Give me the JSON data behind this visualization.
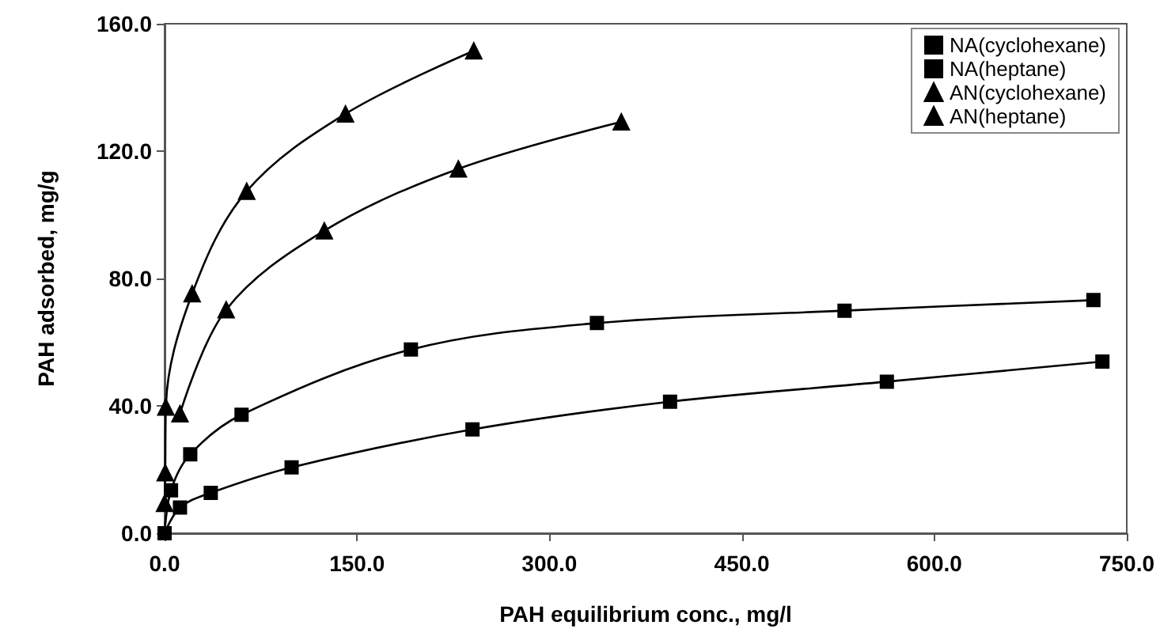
{
  "chart_data": {
    "type": "line",
    "xlabel": "PAH equilibrium conc., mg/l",
    "ylabel": "PAH adsorbed, mg/g",
    "xlim": [
      0,
      750
    ],
    "xticks": [
      {
        "value": 0,
        "label": "0.0"
      },
      {
        "value": 150,
        "label": "150.0"
      },
      {
        "value": 300,
        "label": "300.0"
      },
      {
        "value": 450,
        "label": "450.0"
      },
      {
        "value": 600,
        "label": "600.0"
      },
      {
        "value": 750,
        "label": "750.0"
      }
    ],
    "ylim": [
      0,
      160
    ],
    "yticks": [
      {
        "value": 0,
        "label": "0.0"
      },
      {
        "value": 40,
        "label": "40.0"
      },
      {
        "value": 80,
        "label": "80.0"
      },
      {
        "value": 120,
        "label": "120.0"
      },
      {
        "value": 160,
        "label": "160.0"
      }
    ],
    "grid": false,
    "legend": "top right",
    "line_style": "solid",
    "series": [
      {
        "name": "NA(cyclohexane)",
        "color": "#000000",
        "marker": "square",
        "x": [
          0,
          5,
          20,
          60,
          192,
          337,
          530,
          724
        ],
        "values": [
          0,
          13.5,
          24.8,
          37.2,
          57.7,
          66,
          69.9,
          73.2
        ]
      },
      {
        "name": "NA(heptane)",
        "color": "#000000",
        "marker": "square",
        "x": [
          0,
          12,
          36,
          99,
          240,
          394,
          563,
          731
        ],
        "values": [
          0,
          8.1,
          12.7,
          20.7,
          32.6,
          41.3,
          47.6,
          53.9
        ]
      },
      {
        "name": "AN(cyclohexane)",
        "color": "#000000",
        "marker": "triangle",
        "x": [
          0,
          0.5,
          1,
          21.5,
          64,
          141,
          241
        ],
        "values": [
          9.4,
          19,
          39.6,
          75.2,
          107.4,
          131.7,
          151.5
        ]
      },
      {
        "name": "AN(heptane)",
        "color": "#000000",
        "marker": "triangle",
        "x": [
          12,
          48,
          124.5,
          229,
          356
        ],
        "values": [
          37.5,
          70.2,
          95,
          114.4,
          129.2
        ]
      }
    ]
  }
}
